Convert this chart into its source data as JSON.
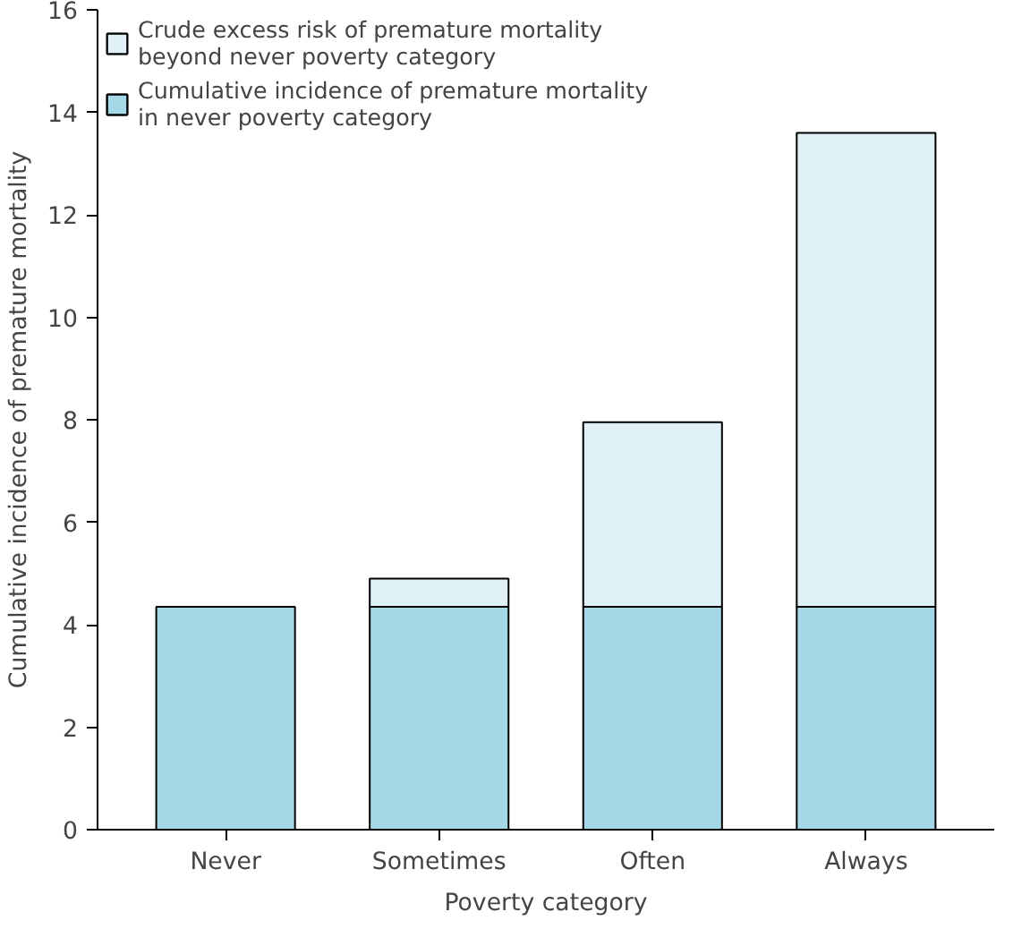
{
  "chart_data": {
    "type": "bar",
    "stacked": true,
    "xlabel": "Poverty category",
    "ylabel": "Cumulative incidence of premature mortality",
    "categories": [
      "Never",
      "Sometimes",
      "Often",
      "Always"
    ],
    "series": [
      {
        "name": "Cumulative incidence of premature mortality\nin never poverty category",
        "color": "#a5d8e6",
        "values": [
          4.35,
          4.35,
          4.35,
          4.35
        ]
      },
      {
        "name": "Crude excess risk of premature mortality\nbeyond never poverty category",
        "color": "#dff0f7",
        "values": [
          null,
          0.55,
          3.6,
          9.25
        ]
      }
    ],
    "ylim": [
      0,
      16
    ],
    "yticks": [
      0,
      2,
      4,
      6,
      8,
      10,
      12,
      14,
      16
    ],
    "grid": false,
    "legend": "top left"
  }
}
